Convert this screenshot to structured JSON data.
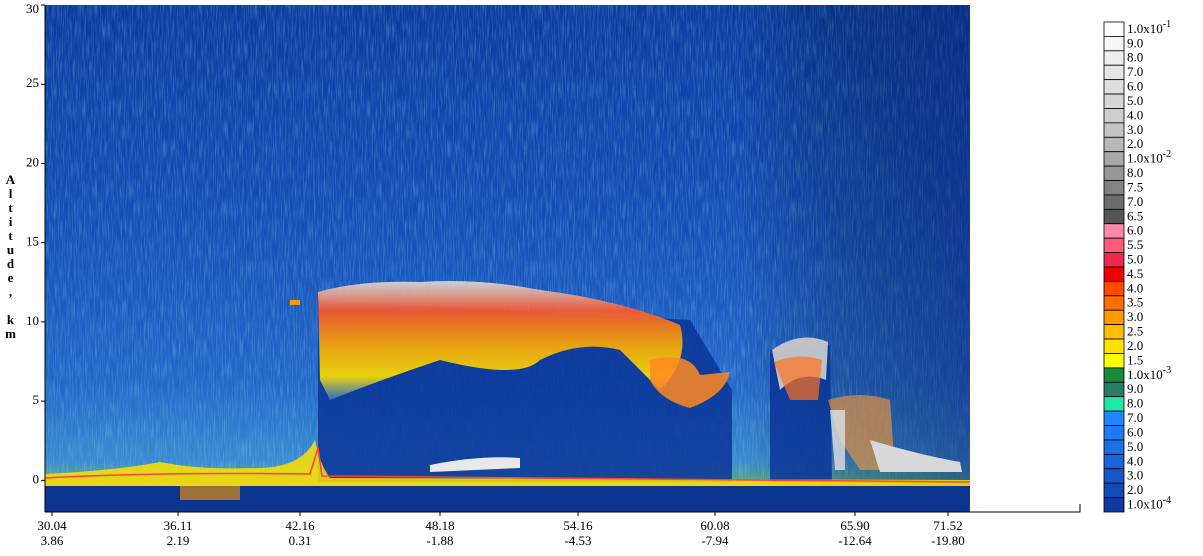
{
  "chart_data": {
    "type": "heatmap",
    "y_label": "Altitude, km",
    "ylim": [
      -2,
      30
    ],
    "yticks": [
      0,
      5,
      10,
      15,
      20,
      25,
      30
    ],
    "x_labels": [
      {
        "lat": "30.04",
        "lon": "3.86"
      },
      {
        "lat": "36.11",
        "lon": "2.19"
      },
      {
        "lat": "42.16",
        "lon": "0.31"
      },
      {
        "lat": "48.18",
        "lon": "-1.88"
      },
      {
        "lat": "54.16",
        "lon": "-4.53"
      },
      {
        "lat": "60.08",
        "lon": "-7.94"
      },
      {
        "lat": "65.90",
        "lon": "-12.64"
      },
      {
        "lat": "71.52",
        "lon": "-19.80"
      }
    ],
    "colorbar": [
      {
        "label": "1.0x10",
        "sup": "-1",
        "color": "#ffffff"
      },
      {
        "label": "9.0",
        "color": "#f6f6f6"
      },
      {
        "label": "8.0",
        "color": "#eeeeee"
      },
      {
        "label": "7.0",
        "color": "#e6e6e6"
      },
      {
        "label": "6.0",
        "color": "#dedede"
      },
      {
        "label": "5.0",
        "color": "#d6d6d6"
      },
      {
        "label": "4.0",
        "color": "#cecece"
      },
      {
        "label": "3.0",
        "color": "#c4c4c4"
      },
      {
        "label": "2.0",
        "color": "#b8b8b8"
      },
      {
        "label": "1.0x10",
        "sup": "-2",
        "color": "#a8a8a8"
      },
      {
        "label": "8.0",
        "color": "#969696"
      },
      {
        "label": "7.5",
        "color": "#828282"
      },
      {
        "label": "7.0",
        "color": "#6c6c6c"
      },
      {
        "label": "6.5",
        "color": "#555555"
      },
      {
        "label": "6.0",
        "color": "#ff88aa"
      },
      {
        "label": "5.5",
        "color": "#ff5a7a"
      },
      {
        "label": "5.0",
        "color": "#f02850"
      },
      {
        "label": "4.5",
        "color": "#ee0000"
      },
      {
        "label": "4.0",
        "color": "#ff4a00"
      },
      {
        "label": "3.5",
        "color": "#ff6e00"
      },
      {
        "label": "3.0",
        "color": "#ff9a00"
      },
      {
        "label": "2.5",
        "color": "#ffbe00"
      },
      {
        "label": "2.0",
        "color": "#ffe000"
      },
      {
        "label": "1.5",
        "color": "#ffff00"
      },
      {
        "label": "1.0x10",
        "sup": "-3",
        "color": "#1a8a3a"
      },
      {
        "label": "9.0",
        "color": "#2a7a6a"
      },
      {
        "label": "8.0",
        "color": "#20e8a8"
      },
      {
        "label": "7.0",
        "color": "#1e88ff"
      },
      {
        "label": "6.0",
        "color": "#1c7cf0"
      },
      {
        "label": "5.0",
        "color": "#1a70e4"
      },
      {
        "label": "4.0",
        "color": "#1864d8"
      },
      {
        "label": "3.0",
        "color": "#1658cc"
      },
      {
        "label": "2.0",
        "color": "#124ab8"
      },
      {
        "label": "1.0x10",
        "sup": "-4",
        "color": "#0c3a9e"
      }
    ]
  }
}
